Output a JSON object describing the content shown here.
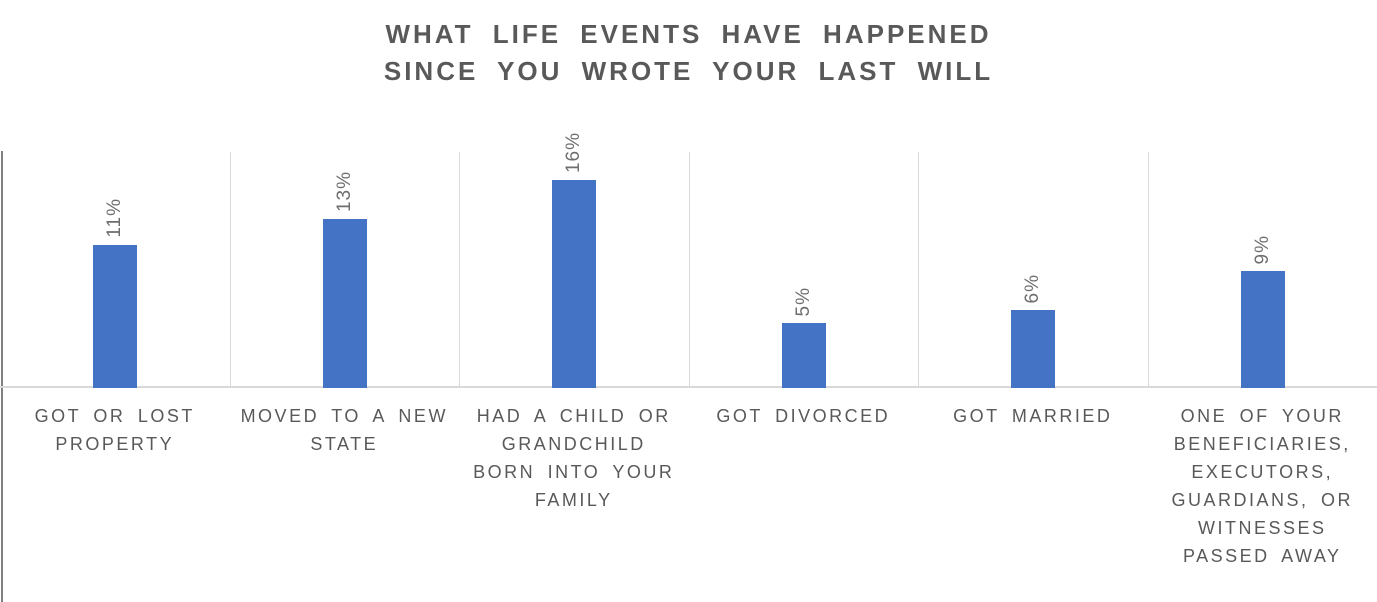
{
  "chart_title_lines": [
    "WHAT LIFE EVENTS HAVE HAPPENED",
    "SINCE YOU WROTE YOUR LAST WILL"
  ],
  "chart_data": {
    "type": "bar",
    "title": "WHAT LIFE EVENTS HAVE HAPPENED SINCE YOU WROTE YOUR LAST WILL",
    "categories": [
      "GOT OR LOST PROPERTY",
      "MOVED TO A NEW STATE",
      "HAD A CHILD OR GRANDCHILD BORN INTO YOUR FAMILY",
      "GOT DIVORCED",
      "GOT MARRIED",
      "ONE OF YOUR BENEFICIARIES, EXECUTORS, GUARDIANS, OR WITNESSES PASSED AWAY"
    ],
    "values": [
      11,
      13,
      16,
      5,
      6,
      9
    ],
    "data_labels": [
      "11%",
      "13%",
      "16%",
      "5%",
      "6%",
      "9%"
    ],
    "data_label_rotation": "rotate-up-90",
    "xlabel": "",
    "ylabel": "",
    "ylim": [
      0,
      18
    ],
    "y_axis_visible": false,
    "gridlines": "vertical-category-separators",
    "legend": "none"
  },
  "colors": {
    "bar": "#4472C4",
    "title_text": "#595959",
    "category_text": "#595959",
    "data_label_text": "#6E6E6E",
    "gridline": "#D9D9D9",
    "axis_line": "#D9D9D9",
    "left_edge_line": "#7F7F7F",
    "background": "#FFFFFF"
  }
}
